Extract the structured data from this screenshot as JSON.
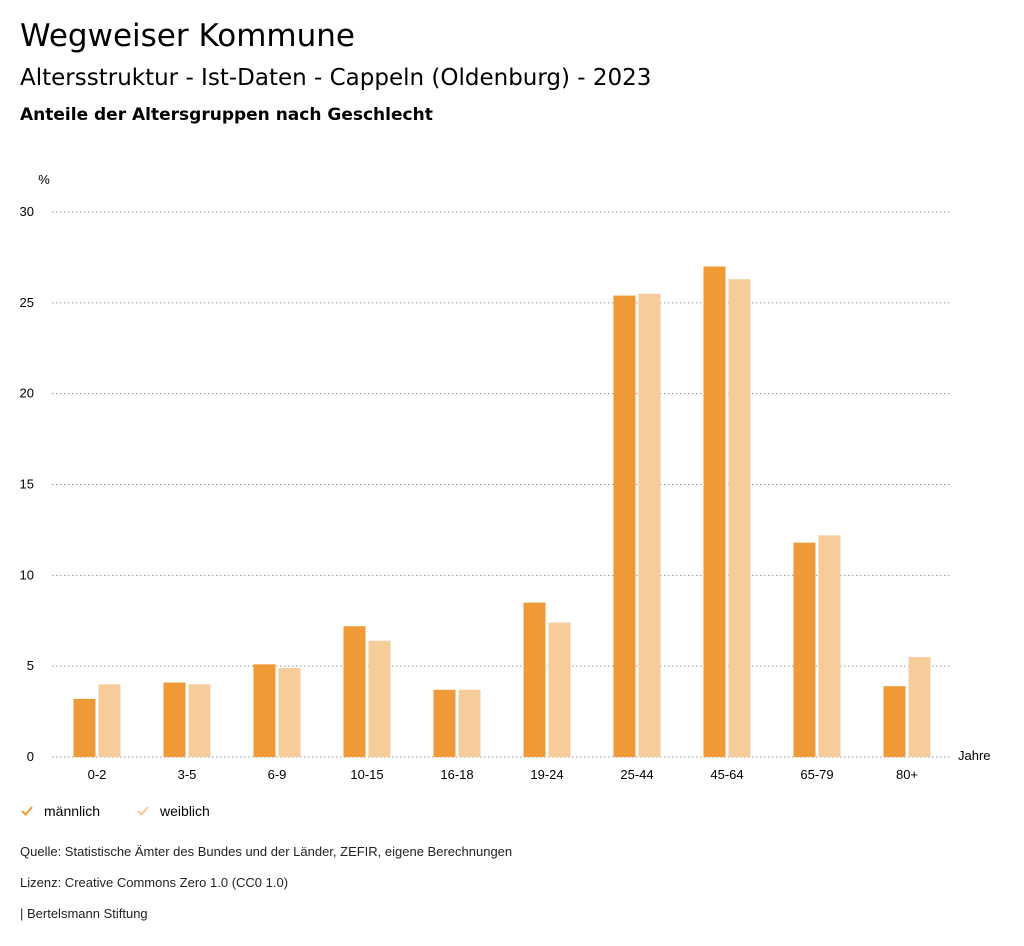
{
  "header": {
    "title": "Wegweiser Kommune",
    "subtitle": "Altersstruktur - Ist-Daten - Cappeln (Oldenburg) - 2023",
    "subsubtitle": "Anteile der Altersgruppen nach Geschlecht"
  },
  "colors": {
    "maennlich": "#ef9a36",
    "weiblich": "#f5cc9a",
    "grid": "#999999"
  },
  "chart_data": {
    "type": "bar",
    "title": "Anteile der Altersgruppen nach Geschlecht",
    "ylabel": "%",
    "xlabel": "Jahre",
    "ylim": [
      0,
      30
    ],
    "yticks": [
      0,
      5,
      10,
      15,
      20,
      25,
      30
    ],
    "grid": true,
    "categories": [
      "0-2",
      "3-5",
      "6-9",
      "10-15",
      "16-18",
      "19-24",
      "25-44",
      "45-64",
      "65-79",
      "80+"
    ],
    "series": [
      {
        "name": "männlich",
        "values": [
          3.2,
          4.1,
          5.1,
          7.2,
          3.7,
          8.5,
          25.4,
          27.0,
          11.8,
          3.9
        ]
      },
      {
        "name": "weiblich",
        "values": [
          4.0,
          4.0,
          4.9,
          6.4,
          3.7,
          7.4,
          25.5,
          26.3,
          12.2,
          5.5
        ]
      }
    ]
  },
  "legend": {
    "items": [
      {
        "label": "männlich"
      },
      {
        "label": "weiblich"
      }
    ]
  },
  "footer": {
    "source": "Quelle: Statistische Ämter des Bundes und der Länder, ZEFIR, eigene Berechnungen",
    "license": "Lizenz: Creative Commons Zero 1.0 (CC0 1.0)",
    "publisher": "| Bertelsmann Stiftung"
  }
}
